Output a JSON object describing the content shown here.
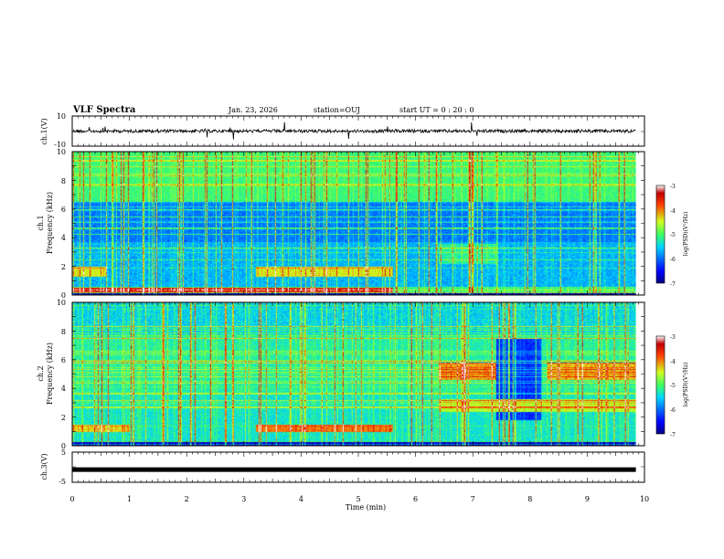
{
  "chart_data": {
    "type": "heatmap",
    "title": "VLF Spectra",
    "date": "Jan. 23, 2026",
    "station": "station=OUJ",
    "start": "start UT =  0 : 20 : 0",
    "xlabel": "Time (min)",
    "xlim": [
      0,
      10
    ],
    "xticks": [
      "0",
      "1",
      "2",
      "3",
      "4",
      "5",
      "6",
      "7",
      "8",
      "9",
      "10"
    ],
    "data_end_min": 9.85,
    "panels": [
      {
        "id": "ch1-waveform",
        "type": "line",
        "ylabel": "ch.1(V)",
        "ylim": [
          -10,
          10
        ],
        "yticks": [
          "10",
          "-10"
        ],
        "baseline": 0
      },
      {
        "id": "ch1-spectrogram",
        "type": "heatmap",
        "ylabel_top": "ch.1",
        "ylabel": "Frequency (kHz)",
        "ylim": [
          0,
          10
        ],
        "yticks": [
          "0",
          "2",
          "4",
          "6",
          "8",
          "10"
        ],
        "colorbar": {
          "label": "log(PSD)(V²/Hz)",
          "range": [
            -7,
            -3
          ],
          "ticks": [
            "-3",
            "-4",
            "-5",
            "-6",
            "-7"
          ]
        }
      },
      {
        "id": "ch2-spectrogram",
        "type": "heatmap",
        "ylabel_top": "ch.2",
        "ylabel": "Frequency (kHz)",
        "ylim": [
          0,
          10
        ],
        "yticks": [
          "0",
          "2",
          "4",
          "6",
          "8",
          "10"
        ],
        "colorbar": {
          "label": "log(PSD)(V²/Hz)",
          "range": [
            -7,
            -3
          ],
          "ticks": [
            "-3",
            "-4",
            "-5",
            "-6",
            "-7"
          ]
        }
      },
      {
        "id": "ch3-waveform",
        "type": "line",
        "ylabel": "ch.3(V)",
        "ylim": [
          -5,
          5
        ],
        "yticks": [
          "5",
          "0",
          "-5"
        ],
        "baseline": -0.8
      }
    ]
  }
}
